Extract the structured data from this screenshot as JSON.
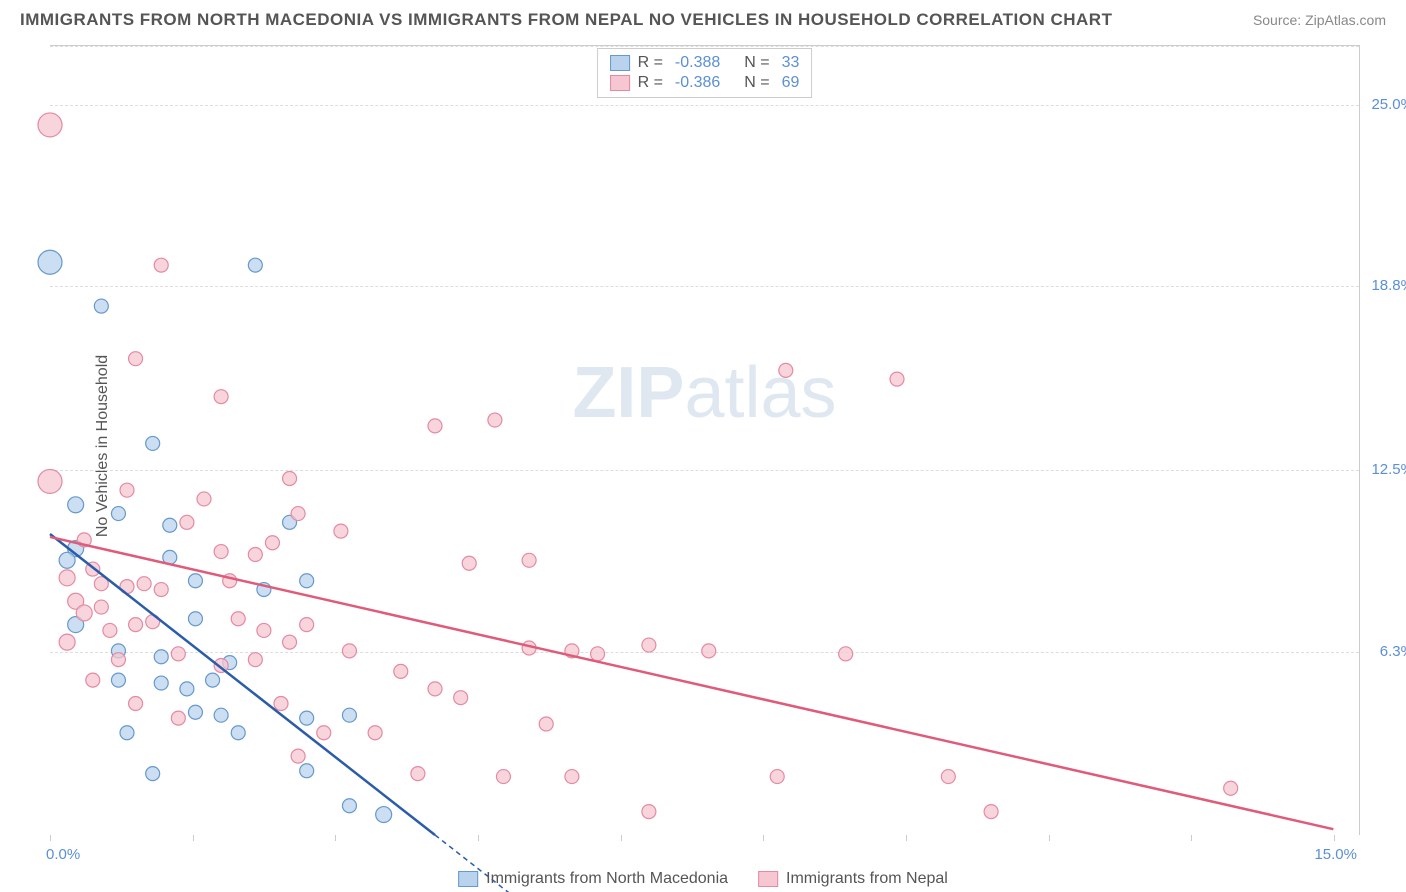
{
  "header": {
    "title": "IMMIGRANTS FROM NORTH MACEDONIA VS IMMIGRANTS FROM NEPAL NO VEHICLES IN HOUSEHOLD CORRELATION CHART",
    "source": "Source: ZipAtlas.com"
  },
  "watermark": {
    "zip": "ZIP",
    "atlas": "atlas"
  },
  "yaxis": {
    "label": "No Vehicles in Household",
    "ticks": [
      {
        "value": 25.0,
        "label": "25.0%"
      },
      {
        "value": 18.8,
        "label": "18.8%"
      },
      {
        "value": 12.5,
        "label": "12.5%"
      },
      {
        "value": 6.3,
        "label": "6.3%"
      }
    ],
    "min": 0.0,
    "max": 27.0,
    "grid_color": "#dddddd"
  },
  "xaxis": {
    "ticks": [
      {
        "value": 0.0,
        "label": "0.0%"
      },
      {
        "value": 15.0,
        "label": "15.0%"
      }
    ],
    "minor_ticks": [
      1.67,
      3.33,
      5.0,
      6.67,
      8.33,
      10.0,
      11.67,
      13.33
    ],
    "min": 0.0,
    "max": 15.3
  },
  "legend_top": {
    "rows": [
      {
        "swatch_fill": "#b9d3ee",
        "swatch_border": "#6699cc",
        "r_label": "R =",
        "r_value": "-0.388",
        "n_label": "N =",
        "n_value": "33"
      },
      {
        "swatch_fill": "#f6c7d2",
        "swatch_border": "#e48aa2",
        "r_label": "R =",
        "r_value": "-0.386",
        "n_label": "N =",
        "n_value": "69"
      }
    ]
  },
  "legend_bottom": {
    "items": [
      {
        "swatch_fill": "#b9d3ee",
        "swatch_border": "#6699cc",
        "label": "Immigrants from North Macedonia"
      },
      {
        "swatch_fill": "#f6c7d2",
        "swatch_border": "#e48aa2",
        "label": "Immigrants from Nepal"
      }
    ]
  },
  "series": [
    {
      "name": "north_macedonia",
      "marker_fill": "#b9d3ee",
      "marker_border": "#6699cc",
      "marker_opacity": 0.75,
      "line_color": "#2a5caa",
      "line_x1": 0.0,
      "line_y1": 10.3,
      "line_x2": 4.5,
      "line_y2": 0.0,
      "line_dash_x2": 5.5,
      "points": [
        {
          "x": 0.0,
          "y": 19.6,
          "r": 12
        },
        {
          "x": 0.6,
          "y": 18.1,
          "r": 7
        },
        {
          "x": 2.4,
          "y": 19.5,
          "r": 7
        },
        {
          "x": 1.2,
          "y": 13.4,
          "r": 7
        },
        {
          "x": 0.3,
          "y": 11.3,
          "r": 8
        },
        {
          "x": 0.8,
          "y": 11.0,
          "r": 7
        },
        {
          "x": 1.4,
          "y": 10.6,
          "r": 7
        },
        {
          "x": 0.3,
          "y": 9.8,
          "r": 8
        },
        {
          "x": 0.2,
          "y": 9.4,
          "r": 8
        },
        {
          "x": 1.4,
          "y": 9.5,
          "r": 7
        },
        {
          "x": 2.8,
          "y": 10.7,
          "r": 7
        },
        {
          "x": 3.0,
          "y": 8.7,
          "r": 7
        },
        {
          "x": 1.7,
          "y": 8.7,
          "r": 7
        },
        {
          "x": 2.5,
          "y": 8.4,
          "r": 7
        },
        {
          "x": 0.3,
          "y": 7.2,
          "r": 8
        },
        {
          "x": 1.7,
          "y": 7.4,
          "r": 7
        },
        {
          "x": 0.8,
          "y": 6.3,
          "r": 7
        },
        {
          "x": 1.3,
          "y": 6.1,
          "r": 7
        },
        {
          "x": 2.1,
          "y": 5.9,
          "r": 7
        },
        {
          "x": 0.8,
          "y": 5.3,
          "r": 7
        },
        {
          "x": 1.3,
          "y": 5.2,
          "r": 7
        },
        {
          "x": 1.9,
          "y": 5.3,
          "r": 7
        },
        {
          "x": 1.6,
          "y": 5.0,
          "r": 7
        },
        {
          "x": 1.7,
          "y": 4.2,
          "r": 7
        },
        {
          "x": 2.0,
          "y": 4.1,
          "r": 7
        },
        {
          "x": 0.9,
          "y": 3.5,
          "r": 7
        },
        {
          "x": 2.2,
          "y": 3.5,
          "r": 7
        },
        {
          "x": 3.0,
          "y": 4.0,
          "r": 7
        },
        {
          "x": 3.5,
          "y": 4.1,
          "r": 7
        },
        {
          "x": 1.2,
          "y": 2.1,
          "r": 7
        },
        {
          "x": 3.0,
          "y": 2.2,
          "r": 7
        },
        {
          "x": 3.5,
          "y": 1.0,
          "r": 7
        },
        {
          "x": 3.9,
          "y": 0.7,
          "r": 8
        }
      ]
    },
    {
      "name": "nepal",
      "marker_fill": "#f6c7d2",
      "marker_border": "#e48aa2",
      "marker_opacity": 0.75,
      "line_color": "#e05a7a",
      "line_x1": 0.0,
      "line_y1": 10.2,
      "line_x2": 15.0,
      "line_y2": 0.2,
      "points": [
        {
          "x": 0.0,
          "y": 24.3,
          "r": 12
        },
        {
          "x": 1.3,
          "y": 19.5,
          "r": 7
        },
        {
          "x": 1.0,
          "y": 16.3,
          "r": 7
        },
        {
          "x": 2.0,
          "y": 15.0,
          "r": 7
        },
        {
          "x": 4.5,
          "y": 14.0,
          "r": 7
        },
        {
          "x": 5.2,
          "y": 14.2,
          "r": 7
        },
        {
          "x": 8.6,
          "y": 15.9,
          "r": 7
        },
        {
          "x": 9.9,
          "y": 15.6,
          "r": 7
        },
        {
          "x": 0.0,
          "y": 12.1,
          "r": 12
        },
        {
          "x": 0.9,
          "y": 11.8,
          "r": 7
        },
        {
          "x": 2.8,
          "y": 12.2,
          "r": 7
        },
        {
          "x": 0.4,
          "y": 10.1,
          "r": 7
        },
        {
          "x": 1.6,
          "y": 10.7,
          "r": 7
        },
        {
          "x": 3.4,
          "y": 10.4,
          "r": 7
        },
        {
          "x": 2.0,
          "y": 9.7,
          "r": 7
        },
        {
          "x": 2.4,
          "y": 9.6,
          "r": 7
        },
        {
          "x": 4.9,
          "y": 9.3,
          "r": 7
        },
        {
          "x": 5.6,
          "y": 9.4,
          "r": 7
        },
        {
          "x": 0.2,
          "y": 8.8,
          "r": 8
        },
        {
          "x": 0.6,
          "y": 8.6,
          "r": 7
        },
        {
          "x": 0.9,
          "y": 8.5,
          "r": 7
        },
        {
          "x": 1.1,
          "y": 8.6,
          "r": 7
        },
        {
          "x": 1.3,
          "y": 8.4,
          "r": 7
        },
        {
          "x": 2.1,
          "y": 8.7,
          "r": 7
        },
        {
          "x": 0.3,
          "y": 8.0,
          "r": 8
        },
        {
          "x": 0.6,
          "y": 7.8,
          "r": 7
        },
        {
          "x": 1.0,
          "y": 7.2,
          "r": 7
        },
        {
          "x": 2.2,
          "y": 7.4,
          "r": 7
        },
        {
          "x": 2.5,
          "y": 7.0,
          "r": 7
        },
        {
          "x": 2.8,
          "y": 6.6,
          "r": 7
        },
        {
          "x": 0.2,
          "y": 6.6,
          "r": 8
        },
        {
          "x": 0.4,
          "y": 7.6,
          "r": 8
        },
        {
          "x": 0.8,
          "y": 6.0,
          "r": 7
        },
        {
          "x": 1.5,
          "y": 6.2,
          "r": 7
        },
        {
          "x": 3.5,
          "y": 6.3,
          "r": 7
        },
        {
          "x": 5.6,
          "y": 6.4,
          "r": 7
        },
        {
          "x": 6.1,
          "y": 6.3,
          "r": 7
        },
        {
          "x": 6.4,
          "y": 6.2,
          "r": 7
        },
        {
          "x": 7.0,
          "y": 6.5,
          "r": 7
        },
        {
          "x": 7.7,
          "y": 6.3,
          "r": 7
        },
        {
          "x": 9.3,
          "y": 6.2,
          "r": 7
        },
        {
          "x": 4.1,
          "y": 5.6,
          "r": 7
        },
        {
          "x": 4.5,
          "y": 5.0,
          "r": 7
        },
        {
          "x": 2.7,
          "y": 4.5,
          "r": 7
        },
        {
          "x": 3.2,
          "y": 3.5,
          "r": 7
        },
        {
          "x": 3.8,
          "y": 3.5,
          "r": 7
        },
        {
          "x": 2.9,
          "y": 2.7,
          "r": 7
        },
        {
          "x": 4.3,
          "y": 2.1,
          "r": 7
        },
        {
          "x": 5.3,
          "y": 2.0,
          "r": 7
        },
        {
          "x": 6.1,
          "y": 2.0,
          "r": 7
        },
        {
          "x": 5.8,
          "y": 3.8,
          "r": 7
        },
        {
          "x": 7.0,
          "y": 0.8,
          "r": 7
        },
        {
          "x": 8.5,
          "y": 2.0,
          "r": 7
        },
        {
          "x": 10.5,
          "y": 2.0,
          "r": 7
        },
        {
          "x": 11.0,
          "y": 0.8,
          "r": 7
        },
        {
          "x": 13.8,
          "y": 1.6,
          "r": 7
        },
        {
          "x": 0.5,
          "y": 5.3,
          "r": 7
        },
        {
          "x": 1.0,
          "y": 4.5,
          "r": 7
        },
        {
          "x": 1.5,
          "y": 4.0,
          "r": 7
        },
        {
          "x": 2.0,
          "y": 5.8,
          "r": 7
        },
        {
          "x": 0.7,
          "y": 7.0,
          "r": 7
        },
        {
          "x": 1.2,
          "y": 7.3,
          "r": 7
        },
        {
          "x": 2.4,
          "y": 6.0,
          "r": 7
        },
        {
          "x": 3.0,
          "y": 7.2,
          "r": 7
        },
        {
          "x": 1.8,
          "y": 11.5,
          "r": 7
        },
        {
          "x": 0.5,
          "y": 9.1,
          "r": 7
        },
        {
          "x": 2.6,
          "y": 10.0,
          "r": 7
        },
        {
          "x": 4.8,
          "y": 4.7,
          "r": 7
        },
        {
          "x": 2.9,
          "y": 11.0,
          "r": 7
        }
      ]
    }
  ],
  "colors": {
    "title": "#555555",
    "axis_value": "#5b8fd6",
    "border": "#cccccc"
  }
}
